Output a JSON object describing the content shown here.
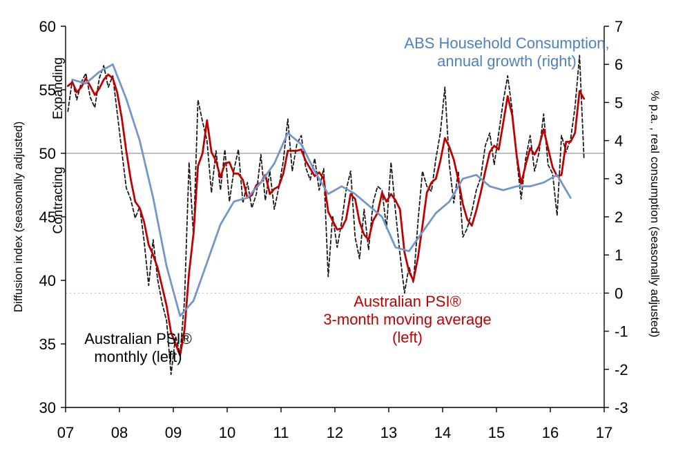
{
  "labels": {
    "left_axis_title": "Diffusion index (seasonally adjusted)",
    "right_axis_title": "% p.a. , real consumption (seasonally adjusted)",
    "zone_expanding": "Expanding",
    "zone_contracting": "Contracting",
    "anno_consumption_line1": "ABS Household Consumption,",
    "anno_consumption_line2": "annual growth (right)",
    "anno_psi_monthly_line1": "Australian PSI®",
    "anno_psi_monthly_line2": "monthly (left)",
    "anno_psi_mma_line1": "Australian PSI®",
    "anno_psi_mma_line2": "3-month moving average",
    "anno_psi_mma_line3": "(left)"
  },
  "colors": {
    "psi_monthly_line": "#1a1a1a",
    "psi_3mma_line": "#C00000",
    "consumption_line": "#7296C8",
    "consumption_text": "#4F81BD",
    "negative_tick_labels": "#C00000",
    "fifty_reference_line": "#808080"
  },
  "chart_data": {
    "type": "line",
    "title": "",
    "x_axis": {
      "min": 2007,
      "max": 2017,
      "tick_labels": [
        "07",
        "08",
        "09",
        "10",
        "11",
        "12",
        "13",
        "14",
        "15",
        "16",
        "17"
      ]
    },
    "left_axis": {
      "label": "Diffusion index (seasonally adjusted)",
      "min": 30,
      "max": 60,
      "ticks": [
        30,
        35,
        40,
        45,
        50,
        55,
        60
      ],
      "zone_labels": [
        "Expanding",
        "Contracting"
      ]
    },
    "right_axis": {
      "label": "% p.a. , real consumption (seasonally adjusted)",
      "min": -3,
      "max": 7,
      "ticks": [
        -3,
        -2,
        -1,
        0,
        1,
        2,
        3,
        4,
        5,
        6,
        7
      ],
      "negative_color": "#C00000"
    },
    "reference_lines": [
      {
        "axis": "left",
        "value": 50,
        "style": "solid"
      },
      {
        "axis": "right",
        "value": 0,
        "style": "dotted"
      }
    ],
    "series": [
      {
        "id": "psi-monthly",
        "name": "Australian PSI® monthly (left)",
        "axis": "left",
        "frequency": "monthly",
        "start": "2007-01",
        "color": "#1a1a1a",
        "style": "dashed",
        "values": [
          53.3,
          55.8,
          54.2,
          55.6,
          56.3,
          54.4,
          53.6,
          55.9,
          56.9,
          55.2,
          56.1,
          53.2,
          50.2,
          47.3,
          46.4,
          44.9,
          45.8,
          43.1,
          39.6,
          43.2,
          40.1,
          38.2,
          36.8,
          32.6,
          35.6,
          34.2,
          38.4,
          49.3,
          43.4,
          54.2,
          52.5,
          51.0,
          46.9,
          50.2,
          47.1,
          50.3,
          46.2,
          48.7,
          50.3,
          46.1,
          47.7,
          45.7,
          46.8,
          49.9,
          46.3,
          48.6,
          45.6,
          47.3,
          49.4,
          52.7,
          48.6,
          50.7,
          51.4,
          48.9,
          47.9,
          49.6,
          47.1,
          48.8,
          40.3,
          45.1,
          42.6,
          44.6,
          47.1,
          48.6,
          43.4,
          41.7,
          45.6,
          42.4,
          46.1,
          47.4,
          47.1,
          44.1,
          49.3,
          45.4,
          42.1,
          39.0,
          41.1,
          39.8,
          44.6,
          48.6,
          47.4,
          47.0,
          49.6,
          51.6,
          55.2,
          49.1,
          46.1,
          48.6,
          43.4,
          44.1,
          45.4,
          47.1,
          48.1,
          50.6,
          51.6,
          49.1,
          51.6,
          54.1,
          56.1,
          53.4,
          49.6,
          46.4,
          49.6,
          51.4,
          48.6,
          50.1,
          53.1,
          49.1,
          48.4,
          45.1,
          51.4,
          50.1,
          51.1,
          53.6,
          57.7,
          49.5
        ]
      },
      {
        "id": "psi-3mma",
        "name": "Australian PSI® 3-month moving average (left)",
        "axis": "left",
        "frequency": "monthly",
        "start": "2007-01",
        "color": "#C00000",
        "style": "solid",
        "values": [
          55.3,
          55.6,
          54.8,
          55.2,
          55.9,
          55.3,
          54.6,
          55.1,
          55.8,
          56.2,
          55.9,
          54.8,
          52.8,
          50.2,
          48.0,
          46.2,
          45.7,
          44.6,
          42.8,
          42.0,
          41.0,
          39.5,
          38.0,
          35.9,
          35.0,
          34.1,
          36.1,
          40.6,
          43.7,
          49.0,
          50.0,
          52.6,
          50.1,
          49.4,
          48.1,
          49.2,
          49.3,
          48.4,
          48.4,
          47.9,
          46.5,
          46.7,
          47.5,
          47.7,
          48.3,
          46.8,
          47.2,
          47.4,
          48.4,
          50.2,
          50.2,
          50.2,
          50.3,
          49.4,
          48.8,
          48.2,
          48.5,
          48.0,
          45.4,
          44.7,
          44.0,
          44.1,
          44.8,
          46.8,
          46.4,
          44.6,
          43.6,
          43.2,
          44.7,
          45.3,
          46.9,
          46.2,
          46.8,
          46.3,
          45.6,
          42.2,
          40.7,
          40.0,
          41.8,
          44.3,
          46.9,
          47.7,
          48.0,
          49.4,
          51.2,
          50.5,
          49.5,
          47.9,
          46.0,
          44.8,
          44.3,
          45.5,
          46.9,
          48.6,
          50.1,
          50.6,
          50.3,
          52.4,
          54.5,
          53.0,
          49.8,
          47.6,
          49.1,
          50.4,
          49.9,
          50.6,
          51.9,
          50.4,
          48.9,
          48.2,
          48.3,
          50.9,
          50.9,
          51.6,
          54.9,
          54.3
        ]
      },
      {
        "id": "consumption",
        "name": "ABS Household Consumption, annual growth (right)",
        "axis": "right",
        "frequency": "quarterly",
        "start": "2007-Q1",
        "color": "#7296C8",
        "style": "solid",
        "values": [
          5.6,
          5.5,
          5.8,
          6.0,
          5.1,
          4.0,
          2.5,
          0.7,
          -0.6,
          -0.2,
          0.8,
          1.8,
          2.4,
          2.5,
          2.9,
          3.4,
          4.2,
          3.9,
          3.2,
          2.6,
          2.8,
          2.6,
          2.3,
          2.0,
          1.2,
          1.1,
          1.6,
          2.1,
          2.4,
          3.0,
          3.1,
          2.8,
          2.7,
          2.8,
          2.8,
          2.9,
          3.1,
          2.5
        ]
      }
    ]
  }
}
